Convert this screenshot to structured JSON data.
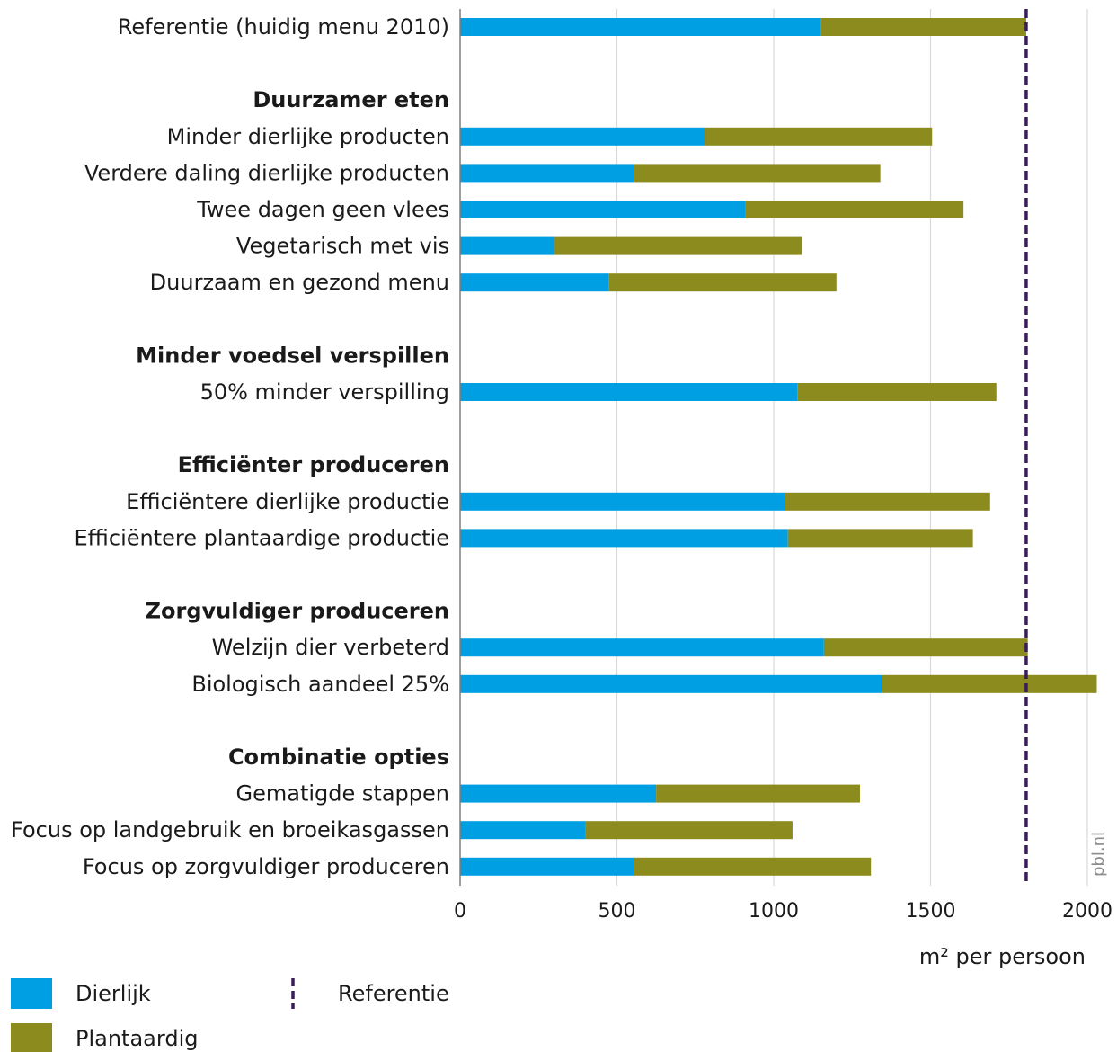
{
  "chart_data": {
    "type": "bar",
    "orientation": "horizontal",
    "stacked": true,
    "categories": [
      "Referentie (huidig menu 2010)",
      "Minder dierlijke producten",
      "Verdere daling dierlijke producten",
      "Twee dagen geen vlees",
      "Vegetarisch met vis",
      "Duurzaam en gezond menu",
      "50% minder verspilling",
      "Efficiëntere dierlijke productie",
      "Efficiëntere plantaardige productie",
      "Welzijn dier verbeterd",
      "Biologisch aandeel 25%",
      "Gematigde stappen",
      "Focus op landgebruik en broeikasgassen",
      "Focus op zorgvuldiger produceren"
    ],
    "groups": [
      {
        "title": "Duurzamer eten",
        "categories": [
          1,
          2,
          3,
          4,
          5
        ]
      },
      {
        "title": "Minder voedsel verspillen",
        "categories": [
          6
        ]
      },
      {
        "title": "Efficiënter produceren",
        "categories": [
          7,
          8
        ]
      },
      {
        "title": "Zorgvuldiger produceren",
        "categories": [
          9,
          10
        ]
      },
      {
        "title": "Combinatie opties",
        "categories": [
          11,
          12,
          13
        ]
      }
    ],
    "series": [
      {
        "name": "Dierlijk",
        "color": "#009fe3",
        "values": [
          1150,
          780,
          555,
          910,
          300,
          475,
          1075,
          1035,
          1045,
          1160,
          1345,
          625,
          400,
          555
        ]
      },
      {
        "name": "Plantaardig",
        "color": "#8c8c1e",
        "values": [
          655,
          725,
          785,
          695,
          790,
          725,
          635,
          655,
          590,
          650,
          685,
          650,
          660,
          755
        ]
      }
    ],
    "reference_line": {
      "name": "Referentie",
      "value": 1805,
      "color": "#3b1c5a"
    },
    "xlabel": "m² per persoon",
    "xlim": [
      0,
      2000
    ],
    "xticks": [
      0,
      500,
      1000,
      1500,
      2000
    ],
    "grid": true,
    "legend": "bottom-left",
    "source": "pbl.nl"
  }
}
